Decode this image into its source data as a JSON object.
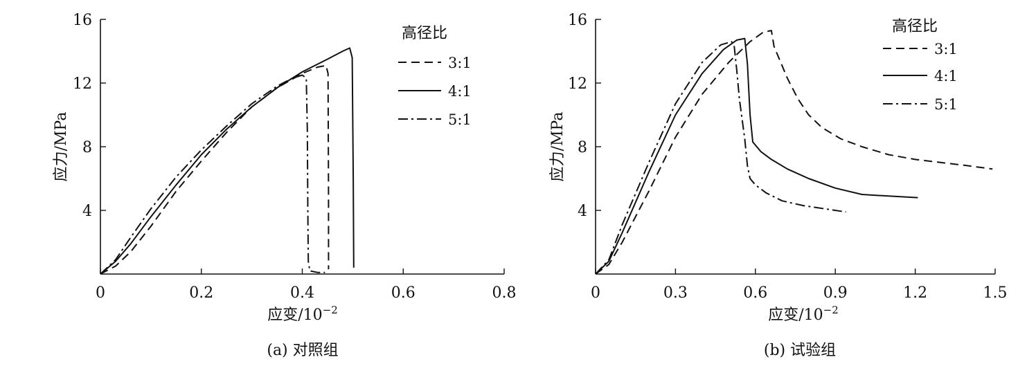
{
  "chart_data": [
    {
      "type": "line",
      "caption": "(a) 对照组",
      "xlabel": "应变/10",
      "xlabel_exp": "−2",
      "ylabel": "应力/MPa",
      "xlim": [
        0,
        0.8
      ],
      "ylim": [
        0,
        16
      ],
      "xticks": [
        "0",
        "0.2",
        "0.4",
        "0.6",
        "0.8"
      ],
      "yticks": [
        "4",
        "8",
        "12",
        "16"
      ],
      "legend": {
        "title": "高径比",
        "position": "top-right"
      },
      "series": [
        {
          "name": "3:1",
          "style": "dashed",
          "x": [
            0,
            0.03,
            0.06,
            0.1,
            0.15,
            0.2,
            0.25,
            0.3,
            0.35,
            0.4,
            0.43,
            0.447,
            0.451,
            0.452,
            0.452
          ],
          "y": [
            0,
            0.5,
            1.4,
            3.0,
            5.2,
            7.1,
            8.9,
            10.5,
            11.7,
            12.6,
            13.0,
            13.1,
            12.6,
            5.0,
            0.3
          ]
        },
        {
          "name": "4:1",
          "style": "solid",
          "x": [
            0,
            0.03,
            0.06,
            0.1,
            0.15,
            0.2,
            0.25,
            0.3,
            0.35,
            0.4,
            0.45,
            0.48,
            0.494,
            0.499,
            0.501,
            0.502
          ],
          "y": [
            0,
            0.8,
            1.9,
            3.6,
            5.6,
            7.5,
            9.1,
            10.5,
            11.7,
            12.7,
            13.5,
            14.0,
            14.2,
            13.6,
            6.0,
            0.4
          ]
        },
        {
          "name": "5:1",
          "style": "dash-dot",
          "x": [
            0,
            0.03,
            0.06,
            0.1,
            0.15,
            0.2,
            0.25,
            0.3,
            0.35,
            0.38,
            0.4,
            0.408,
            0.41,
            0.411,
            0.412,
            0.415,
            0.43,
            0.445
          ],
          "y": [
            0,
            0.9,
            2.3,
            4.1,
            6.1,
            7.8,
            9.3,
            10.7,
            11.8,
            12.3,
            12.5,
            12.3,
            9.0,
            4.0,
            0.8,
            0.2,
            0.1,
            0.1
          ]
        }
      ]
    },
    {
      "type": "line",
      "caption": "(b) 试验组",
      "xlabel": "应变/10",
      "xlabel_exp": "−2",
      "ylabel": "应力/MPa",
      "xlim": [
        0,
        1.5
      ],
      "ylim": [
        0,
        16
      ],
      "xticks": [
        "0",
        "0.3",
        "0.6",
        "0.9",
        "1.2",
        "1.5"
      ],
      "yticks": [
        "4",
        "8",
        "12",
        "16"
      ],
      "legend": {
        "title": "高径比",
        "position": "top-right"
      },
      "series": [
        {
          "name": "3:1",
          "style": "dashed",
          "x": [
            0,
            0.05,
            0.1,
            0.2,
            0.3,
            0.4,
            0.5,
            0.58,
            0.63,
            0.66,
            0.67,
            0.69,
            0.72,
            0.76,
            0.8,
            0.85,
            0.92,
            1.0,
            1.1,
            1.2,
            1.3,
            1.4,
            1.49
          ],
          "y": [
            0,
            0.6,
            2.0,
            5.2,
            8.6,
            11.3,
            13.3,
            14.6,
            15.2,
            15.3,
            14.3,
            13.5,
            12.3,
            11.0,
            10.0,
            9.2,
            8.5,
            8.0,
            7.5,
            7.2,
            7.0,
            6.8,
            6.6
          ]
        },
        {
          "name": "4:1",
          "style": "solid",
          "x": [
            0,
            0.05,
            0.1,
            0.2,
            0.3,
            0.4,
            0.48,
            0.53,
            0.56,
            0.57,
            0.58,
            0.59,
            0.62,
            0.66,
            0.72,
            0.8,
            0.9,
            1.0,
            1.1,
            1.21
          ],
          "y": [
            0,
            0.8,
            2.6,
            6.4,
            10.0,
            12.6,
            14.1,
            14.7,
            14.8,
            13.2,
            10.0,
            8.3,
            7.7,
            7.2,
            6.6,
            6.0,
            5.4,
            5.0,
            4.9,
            4.8
          ]
        },
        {
          "name": "5:1",
          "style": "dash-dot",
          "x": [
            0,
            0.05,
            0.1,
            0.2,
            0.3,
            0.4,
            0.47,
            0.51,
            0.52,
            0.53,
            0.54,
            0.56,
            0.57,
            0.58,
            0.6,
            0.64,
            0.7,
            0.78,
            0.86,
            0.94
          ],
          "y": [
            0,
            0.9,
            3.1,
            7.0,
            10.7,
            13.3,
            14.4,
            14.6,
            14.4,
            12.8,
            11.0,
            8.5,
            6.8,
            6.0,
            5.6,
            5.1,
            4.6,
            4.3,
            4.1,
            3.9
          ]
        }
      ]
    }
  ]
}
